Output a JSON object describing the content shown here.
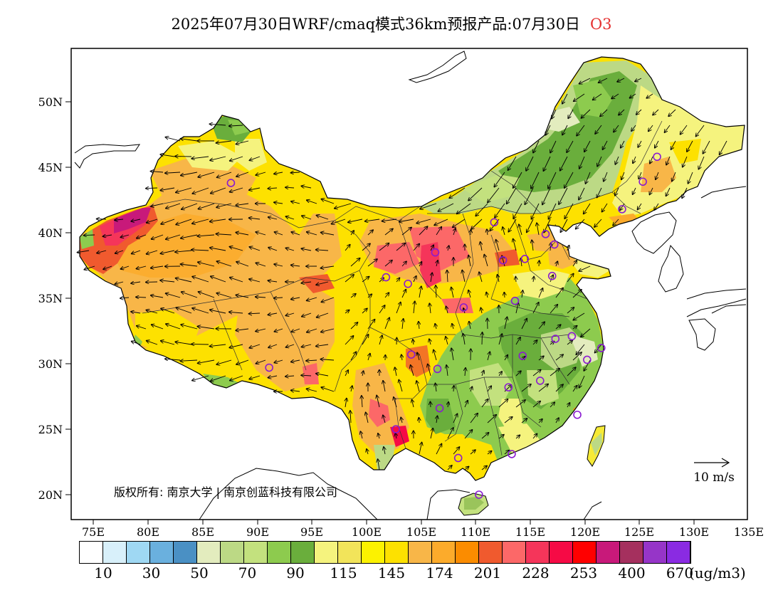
{
  "title": {
    "main": "2025年07月30日WRF/cmaq模式36km预报产品:07月30日",
    "variable": "O3"
  },
  "map": {
    "lat_labels": [
      "50N",
      "45N",
      "40N",
      "35N",
      "30N",
      "25N",
      "20N"
    ],
    "lon_labels": [
      "75E",
      "80E",
      "85E",
      "90E",
      "95E",
      "100E",
      "105E",
      "110E",
      "115E",
      "120E",
      "125E",
      "130E",
      "135E"
    ],
    "wind_reference": "10 m/s",
    "copyright": "版权所有: 南京大学 | 南京创蓝科技有限公司"
  },
  "legend": {
    "colors": [
      "#ffffff",
      "#d8f0fa",
      "#9fd8f3",
      "#6ab0de",
      "#4a90c4",
      "#e3ecbe",
      "#bcd985",
      "#c3e17e",
      "#8dcb4e",
      "#6aae3c",
      "#f5f37e",
      "#f2e45a",
      "#fcf200",
      "#fde100",
      "#f8b648",
      "#fcab2b",
      "#fb8c00",
      "#f05a2e",
      "#fc6868",
      "#f5355a",
      "#f60a45",
      "#ff0000",
      "#c8197a",
      "#a5305e",
      "#9635c8",
      "#8a2be2"
    ],
    "labels": [
      "10",
      "30",
      "50",
      "70",
      "90",
      "115",
      "145",
      "174",
      "201",
      "228",
      "253",
      "400",
      "670"
    ],
    "unit": "(ug/m3)"
  },
  "stations": [
    [
      87.6,
      43.8
    ],
    [
      91.1,
      29.7
    ],
    [
      101.8,
      36.6
    ],
    [
      103.8,
      36.1
    ],
    [
      106.3,
      38.5
    ],
    [
      104.1,
      30.7
    ],
    [
      106.5,
      29.6
    ],
    [
      106.7,
      26.6
    ],
    [
      102.7,
      25.0
    ],
    [
      108.4,
      22.8
    ],
    [
      110.3,
      20.0
    ],
    [
      113.3,
      23.1
    ],
    [
      117.2,
      39.1
    ],
    [
      116.4,
      39.9
    ],
    [
      114.5,
      38.0
    ],
    [
      112.5,
      37.9
    ],
    [
      111.7,
      40.8
    ],
    [
      108.9,
      34.3
    ],
    [
      113.6,
      34.8
    ],
    [
      117.0,
      36.7
    ],
    [
      114.3,
      30.6
    ],
    [
      113.0,
      28.2
    ],
    [
      115.9,
      28.7
    ],
    [
      117.3,
      31.9
    ],
    [
      118.8,
      32.1
    ],
    [
      120.2,
      30.3
    ],
    [
      121.5,
      31.2
    ],
    [
      119.3,
      26.1
    ],
    [
      123.4,
      41.8
    ],
    [
      125.3,
      43.9
    ],
    [
      126.6,
      45.8
    ]
  ]
}
